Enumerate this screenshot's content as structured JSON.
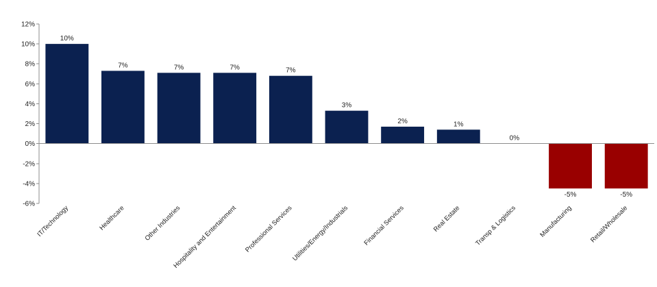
{
  "chart_data": {
    "type": "bar",
    "title": "",
    "xlabel": "",
    "ylabel": "",
    "ylim": [
      -6,
      12
    ],
    "ytick_step": 2,
    "ytick_format": "percent",
    "grid": false,
    "legend": "none",
    "categories": [
      "IT/Technology",
      "Healthcare",
      "Other Industries",
      "Hospitality and Entertainment",
      "Professional Services",
      "Utilities/Energy/Industrials",
      "Financial Services",
      "Real Estate",
      "Transp & Logistics",
      "Manufacturing",
      "Retail/Wholesale"
    ],
    "values": [
      10,
      7.3,
      7.1,
      7.1,
      6.8,
      3.3,
      1.7,
      1.4,
      0,
      -4.5,
      -4.5
    ],
    "data_labels": [
      "10%",
      "7%",
      "7%",
      "7%",
      "7%",
      "3%",
      "2%",
      "1%",
      "0%",
      "-5%",
      "-5%"
    ],
    "colors": {
      "positive": "#0b2150",
      "negative": "#990000"
    }
  }
}
